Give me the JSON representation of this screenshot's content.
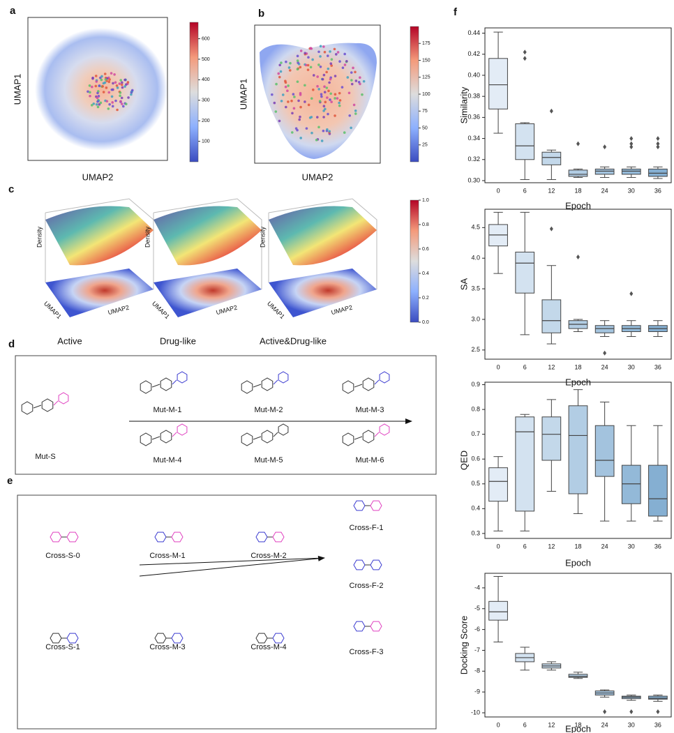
{
  "panels": {
    "a": {
      "label": "a",
      "xlabel": "UMAP2",
      "ylabel": "UMAP1",
      "colorbar": {
        "lim": [
          0,
          680
        ],
        "ticks": [
          100,
          200,
          300,
          400,
          500,
          600
        ]
      }
    },
    "b": {
      "label": "b",
      "xlabel": "UMAP2",
      "ylabel": "UMAP1",
      "colorbar": {
        "lim": [
          0,
          200
        ],
        "ticks": [
          25,
          50,
          75,
          100,
          125,
          150,
          175
        ]
      }
    },
    "c": {
      "label": "c",
      "plots": [
        {
          "title": "Active",
          "zlabel": "Density",
          "xlabel": "UMAP1",
          "ylabel": "UMAP2"
        },
        {
          "title": "Drug-like",
          "zlabel": "Density",
          "xlabel": "UMAP1",
          "ylabel": "UMAP2"
        },
        {
          "title": "Active&Drug-like",
          "zlabel": "Density",
          "xlabel": "UMAP1",
          "ylabel": "UMAP2"
        }
      ],
      "colorbar": {
        "lim": [
          0,
          1
        ],
        "ticks": [
          {
            "value": 0,
            "label": "0.0"
          },
          {
            "value": 0.2,
            "label": "0.2"
          },
          {
            "value": 0.4,
            "label": "0.4"
          },
          {
            "value": 0.6,
            "label": "0.6"
          },
          {
            "value": 0.8,
            "label": "0.8"
          },
          {
            "value": 1,
            "label": "1.0"
          }
        ]
      }
    },
    "d": {
      "label": "d",
      "source": "Mut-S",
      "products": [
        "Mut-M-1",
        "Mut-M-2",
        "Mut-M-3",
        "Mut-M-4",
        "Mut-M-5",
        "Mut-M-6"
      ]
    },
    "e": {
      "label": "e",
      "sources": [
        "Cross-S-0",
        "Cross-S-1"
      ],
      "intermediates": [
        "Cross-M-1",
        "Cross-M-2",
        "Cross-M-3",
        "Cross-M-4"
      ],
      "finals": [
        "Cross-F-1",
        "Cross-F-2",
        "Cross-F-3"
      ]
    },
    "f": {
      "label": "f"
    }
  },
  "chart_data": [
    {
      "type": "box",
      "ylabel": "Similarity",
      "xlabel": "Epoch",
      "categories": [
        "0",
        "6",
        "12",
        "18",
        "24",
        "30",
        "36"
      ],
      "colors": [
        "#e3ecf6",
        "#d3e2f0",
        "#c3d8ea",
        "#b2cde4",
        "#a3c3de",
        "#93b9d8",
        "#85afd2"
      ],
      "ylim": [
        0.298,
        0.445
      ],
      "yticks": [
        {
          "value": 0.3,
          "label": "0.30"
        },
        {
          "value": 0.32,
          "label": "0.32"
        },
        {
          "value": 0.34,
          "label": "0.34"
        },
        {
          "value": 0.36,
          "label": "0.36"
        },
        {
          "value": 0.38,
          "label": "0.38"
        },
        {
          "value": 0.4,
          "label": "0.40"
        },
        {
          "value": 0.42,
          "label": "0.42"
        },
        {
          "value": 0.44,
          "label": "0.44"
        }
      ],
      "boxes": [
        {
          "min": 0.345,
          "q1": 0.368,
          "median": 0.391,
          "q3": 0.416,
          "max": 0.441,
          "outliers": []
        },
        {
          "min": 0.301,
          "q1": 0.32,
          "median": 0.333,
          "q3": 0.354,
          "max": 0.355,
          "outliers": [
            0.416,
            0.422
          ]
        },
        {
          "min": 0.301,
          "q1": 0.315,
          "median": 0.322,
          "q3": 0.327,
          "max": 0.329,
          "outliers": [
            0.366
          ]
        },
        {
          "min": 0.303,
          "q1": 0.304,
          "median": 0.306,
          "q3": 0.31,
          "max": 0.311,
          "outliers": [
            0.335
          ]
        },
        {
          "min": 0.303,
          "q1": 0.306,
          "median": 0.309,
          "q3": 0.311,
          "max": 0.313,
          "outliers": [
            0.332
          ]
        },
        {
          "min": 0.303,
          "q1": 0.306,
          "median": 0.309,
          "q3": 0.311,
          "max": 0.313,
          "outliers": [
            0.332,
            0.335,
            0.34
          ]
        },
        {
          "min": 0.302,
          "q1": 0.304,
          "median": 0.307,
          "q3": 0.311,
          "max": 0.313,
          "outliers": [
            0.332,
            0.335,
            0.34
          ]
        }
      ]
    },
    {
      "type": "box",
      "ylabel": "SA",
      "xlabel": "Epoch",
      "categories": [
        "0",
        "6",
        "12",
        "18",
        "24",
        "30",
        "36"
      ],
      "colors": [
        "#e3ecf6",
        "#d3e2f0",
        "#c3d8ea",
        "#b2cde4",
        "#a3c3de",
        "#93b9d8",
        "#85afd2"
      ],
      "ylim": [
        2.35,
        4.8
      ],
      "yticks": [
        2.5,
        {
          "value": 3,
          "label": "3.0"
        },
        3.5,
        {
          "value": 4,
          "label": "4.0"
        },
        4.5
      ],
      "boxes": [
        {
          "min": 3.75,
          "q1": 4.2,
          "median": 4.38,
          "q3": 4.55,
          "max": 4.75,
          "outliers": []
        },
        {
          "min": 2.75,
          "q1": 3.43,
          "median": 3.92,
          "q3": 4.1,
          "max": 4.75,
          "outliers": []
        },
        {
          "min": 2.6,
          "q1": 2.78,
          "median": 2.98,
          "q3": 3.32,
          "max": 3.88,
          "outliers": [
            4.48
          ]
        },
        {
          "min": 2.8,
          "q1": 2.85,
          "median": 2.92,
          "q3": 2.98,
          "max": 3.0,
          "outliers": [
            4.02
          ]
        },
        {
          "min": 2.72,
          "q1": 2.78,
          "median": 2.85,
          "q3": 2.9,
          "max": 2.98,
          "outliers": [
            2.45
          ]
        },
        {
          "min": 2.72,
          "q1": 2.8,
          "median": 2.85,
          "q3": 2.9,
          "max": 2.98,
          "outliers": [
            3.42
          ]
        },
        {
          "min": 2.72,
          "q1": 2.8,
          "median": 2.85,
          "q3": 2.9,
          "max": 2.98,
          "outliers": []
        }
      ]
    },
    {
      "type": "box",
      "ylabel": "QED",
      "xlabel": "Epoch",
      "categories": [
        "0",
        "6",
        "12",
        "18",
        "24",
        "30",
        "36"
      ],
      "colors": [
        "#e3ecf6",
        "#d3e2f0",
        "#c3d8ea",
        "#b2cde4",
        "#a3c3de",
        "#93b9d8",
        "#85afd2"
      ],
      "ylim": [
        0.28,
        0.91
      ],
      "yticks": [
        0.3,
        0.4,
        0.5,
        0.6,
        0.7,
        0.8,
        0.9
      ],
      "boxes": [
        {
          "min": 0.31,
          "q1": 0.43,
          "median": 0.51,
          "q3": 0.565,
          "max": 0.61,
          "outliers": []
        },
        {
          "min": 0.31,
          "q1": 0.39,
          "median": 0.71,
          "q3": 0.77,
          "max": 0.78,
          "outliers": []
        },
        {
          "min": 0.47,
          "q1": 0.595,
          "median": 0.7,
          "q3": 0.77,
          "max": 0.84,
          "outliers": []
        },
        {
          "min": 0.38,
          "q1": 0.46,
          "median": 0.695,
          "q3": 0.815,
          "max": 0.88,
          "outliers": []
        },
        {
          "min": 0.35,
          "q1": 0.53,
          "median": 0.595,
          "q3": 0.735,
          "max": 0.83,
          "outliers": []
        },
        {
          "min": 0.35,
          "q1": 0.42,
          "median": 0.5,
          "q3": 0.575,
          "max": 0.735,
          "outliers": []
        },
        {
          "min": 0.35,
          "q1": 0.37,
          "median": 0.44,
          "q3": 0.575,
          "max": 0.735,
          "outliers": []
        }
      ]
    },
    {
      "type": "box",
      "ylabel": "Docking Score",
      "xlabel": "Epoch",
      "categories": [
        "0",
        "6",
        "12",
        "18",
        "24",
        "30",
        "36"
      ],
      "colors": [
        "#e3ecf6",
        "#d3e2f0",
        "#c3d8ea",
        "#b2cde4",
        "#a3c3de",
        "#93b9d8",
        "#85afd2"
      ],
      "ylim": [
        -10.2,
        -3.3
      ],
      "yticks": [
        -10,
        -9,
        -8,
        -7,
        -6,
        -5,
        -4
      ],
      "boxes": [
        {
          "min": -6.6,
          "q1": -5.55,
          "median": -5.15,
          "q3": -4.65,
          "max": -3.45,
          "outliers": []
        },
        {
          "min": -7.95,
          "q1": -7.55,
          "median": -7.35,
          "q3": -7.15,
          "max": -6.85,
          "outliers": []
        },
        {
          "min": -7.95,
          "q1": -7.85,
          "median": -7.75,
          "q3": -7.65,
          "max": -7.55,
          "outliers": []
        },
        {
          "min": -8.35,
          "q1": -8.3,
          "median": -8.25,
          "q3": -8.15,
          "max": -8.05,
          "outliers": []
        },
        {
          "min": -9.25,
          "q1": -9.15,
          "median": -9.05,
          "q3": -8.95,
          "max": -8.9,
          "outliers": [
            -9.95
          ]
        },
        {
          "min": -9.4,
          "q1": -9.32,
          "median": -9.25,
          "q3": -9.2,
          "max": -9.15,
          "outliers": [
            -9.95
          ]
        },
        {
          "min": -9.45,
          "q1": -9.35,
          "median": -9.3,
          "q3": -9.2,
          "max": -9.15,
          "outliers": [
            -9.95
          ]
        }
      ]
    }
  ]
}
